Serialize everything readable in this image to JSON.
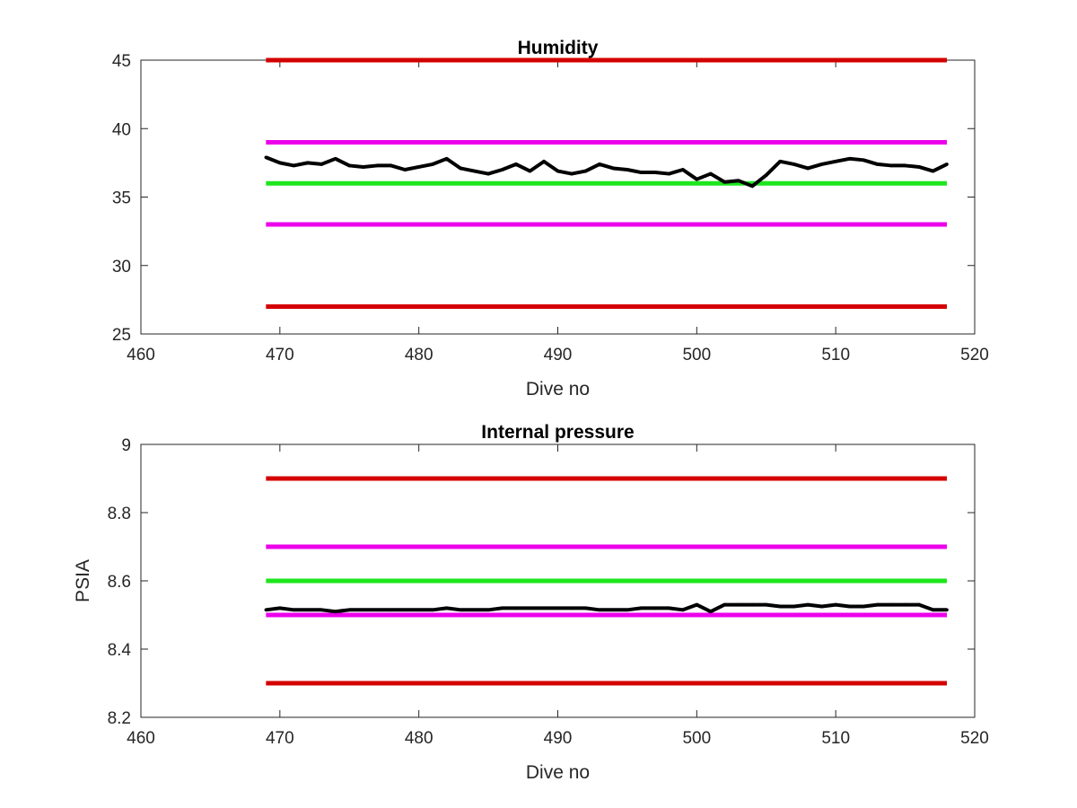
{
  "chart_data": [
    {
      "type": "line",
      "title": "Humidity",
      "xlabel": "Dive no",
      "ylabel": "",
      "xlim": [
        460,
        520
      ],
      "ylim": [
        25,
        45
      ],
      "xticks": [
        460,
        470,
        480,
        490,
        500,
        510,
        520
      ],
      "yticks": [
        25,
        30,
        35,
        40,
        45
      ],
      "grid": false,
      "legend": "none",
      "reference_lines": [
        {
          "y": 45,
          "x_range": [
            469,
            518
          ],
          "color": "#d40000"
        },
        {
          "y": 39,
          "x_range": [
            469,
            518
          ],
          "color": "#ec00ec"
        },
        {
          "y": 36,
          "x_range": [
            469,
            518
          ],
          "color": "#1ee61e"
        },
        {
          "y": 33,
          "x_range": [
            469,
            518
          ],
          "color": "#ec00ec"
        },
        {
          "y": 27,
          "x_range": [
            469,
            518
          ],
          "color": "#d40000"
        }
      ],
      "series": [
        {
          "color": "#000000",
          "x": [
            469,
            470,
            471,
            472,
            473,
            474,
            475,
            476,
            477,
            478,
            479,
            480,
            481,
            482,
            483,
            484,
            485,
            486,
            487,
            488,
            489,
            490,
            491,
            492,
            493,
            494,
            495,
            496,
            497,
            498,
            499,
            500,
            501,
            502,
            503,
            504,
            505,
            506,
            507,
            508,
            509,
            510,
            511,
            512,
            513,
            514,
            515,
            516,
            517,
            518
          ],
          "y": [
            37.9,
            37.5,
            37.3,
            37.5,
            37.4,
            37.8,
            37.3,
            37.2,
            37.3,
            37.3,
            37.0,
            37.2,
            37.4,
            37.8,
            37.1,
            36.9,
            36.7,
            37.0,
            37.4,
            36.9,
            37.6,
            36.9,
            36.7,
            36.9,
            37.4,
            37.1,
            37.0,
            36.8,
            36.8,
            36.7,
            37.0,
            36.3,
            36.7,
            36.1,
            36.2,
            35.8,
            36.6,
            37.6,
            37.4,
            37.1,
            37.4,
            37.6,
            37.8,
            37.7,
            37.4,
            37.3,
            37.3,
            37.2,
            36.9,
            37.4
          ]
        }
      ]
    },
    {
      "type": "line",
      "title": "Internal pressure",
      "xlabel": "Dive no",
      "ylabel": "PSIA",
      "xlim": [
        460,
        520
      ],
      "ylim": [
        8.2,
        9
      ],
      "xticks": [
        460,
        470,
        480,
        490,
        500,
        510,
        520
      ],
      "yticks": [
        8.2,
        8.4,
        8.6,
        8.8,
        9
      ],
      "grid": false,
      "legend": "none",
      "reference_lines": [
        {
          "y": 8.9,
          "x_range": [
            469,
            518
          ],
          "color": "#d40000"
        },
        {
          "y": 8.7,
          "x_range": [
            469,
            518
          ],
          "color": "#ec00ec"
        },
        {
          "y": 8.6,
          "x_range": [
            469,
            518
          ],
          "color": "#1ee61e"
        },
        {
          "y": 8.5,
          "x_range": [
            469,
            518
          ],
          "color": "#ec00ec"
        },
        {
          "y": 8.3,
          "x_range": [
            469,
            518
          ],
          "color": "#d40000"
        }
      ],
      "series": [
        {
          "color": "#000000",
          "x": [
            469,
            470,
            471,
            472,
            473,
            474,
            475,
            476,
            477,
            478,
            479,
            480,
            481,
            482,
            483,
            484,
            485,
            486,
            487,
            488,
            489,
            490,
            491,
            492,
            493,
            494,
            495,
            496,
            497,
            498,
            499,
            500,
            501,
            502,
            503,
            504,
            505,
            506,
            507,
            508,
            509,
            510,
            511,
            512,
            513,
            514,
            515,
            516,
            517,
            518
          ],
          "y": [
            8.515,
            8.52,
            8.515,
            8.515,
            8.515,
            8.51,
            8.515,
            8.515,
            8.515,
            8.515,
            8.515,
            8.515,
            8.515,
            8.52,
            8.515,
            8.515,
            8.515,
            8.52,
            8.52,
            8.52,
            8.52,
            8.52,
            8.52,
            8.52,
            8.515,
            8.515,
            8.515,
            8.52,
            8.52,
            8.52,
            8.515,
            8.53,
            8.51,
            8.53,
            8.53,
            8.53,
            8.53,
            8.525,
            8.525,
            8.53,
            8.525,
            8.53,
            8.525,
            8.525,
            8.53,
            8.53,
            8.53,
            8.53,
            8.515,
            8.515
          ]
        }
      ]
    }
  ]
}
